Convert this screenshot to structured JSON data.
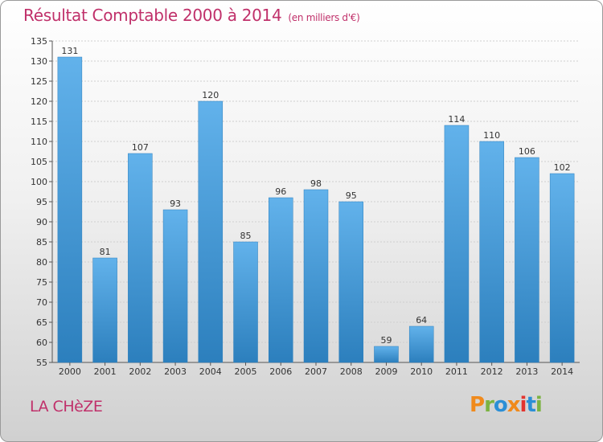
{
  "header": {
    "title": "Résultat Comptable 2000 à 2014",
    "unit": "(en milliers d'€)"
  },
  "footer": {
    "commune": "LA CHèZE",
    "brand": "Proxiti"
  },
  "colors": {
    "title": "#c0306a",
    "bar_light": "#62b2eb",
    "bar_dark": "#2c7fbd",
    "grid": "#cfcfcf",
    "axis": "#555555",
    "brand_letters": [
      "#f08a1c",
      "#7cb342",
      "#2b8fd6",
      "#f08a1c",
      "#e3342f",
      "#2b8fd6",
      "#7cb342"
    ]
  },
  "chart_data": {
    "type": "bar",
    "title": "Résultat Comptable 2000 à 2014",
    "subtitle": "(en milliers d'€)",
    "categories": [
      "2000",
      "2001",
      "2002",
      "2003",
      "2004",
      "2005",
      "2006",
      "2007",
      "2008",
      "2009",
      "2010",
      "2011",
      "2012",
      "2013",
      "2014"
    ],
    "values": [
      131,
      81,
      107,
      93,
      120,
      85,
      96,
      98,
      95,
      59,
      64,
      114,
      110,
      106,
      102
    ],
    "ylim": [
      55,
      135
    ],
    "yticks": [
      55,
      60,
      65,
      70,
      75,
      80,
      85,
      90,
      95,
      100,
      105,
      110,
      115,
      120,
      125,
      130,
      135
    ],
    "grid": true,
    "data_labels": true
  }
}
